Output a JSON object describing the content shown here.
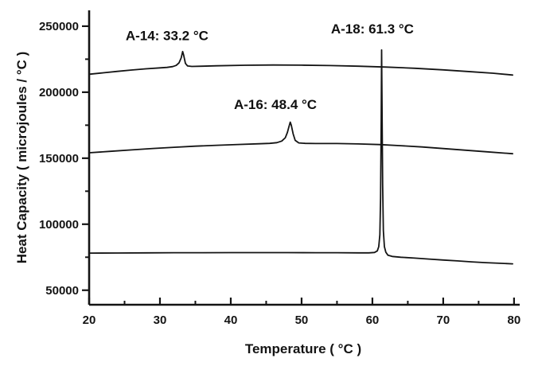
{
  "figure": {
    "background": "#ffffff",
    "ink_color": "#141414"
  },
  "chart_data": {
    "type": "line",
    "title": "",
    "xlabel": "Temperature ( °C )",
    "ylabel": "Heat Capacity ( microjoules / °C )",
    "xlim": [
      20,
      80.8
    ],
    "ylim": [
      39000,
      262000
    ],
    "grid": false,
    "legend": "none",
    "x_ticks": [
      {
        "value": 20,
        "label": "20"
      },
      {
        "value": 30,
        "label": "30"
      },
      {
        "value": 40,
        "label": "40"
      },
      {
        "value": 50,
        "label": "50"
      },
      {
        "value": 60,
        "label": "60"
      },
      {
        "value": 70,
        "label": "70"
      },
      {
        "value": 80,
        "label": "80"
      }
    ],
    "x_minor_ticks": [
      25,
      35,
      45,
      55,
      65,
      75
    ],
    "y_ticks": [
      {
        "value": 50000,
        "label": "50000"
      },
      {
        "value": 100000,
        "label": "100000"
      },
      {
        "value": 150000,
        "label": "150000"
      },
      {
        "value": 200000,
        "label": "200000"
      },
      {
        "value": 250000,
        "label": "250000"
      }
    ],
    "y_minor_ticks": [
      75000,
      125000,
      175000,
      225000
    ],
    "annotations": [
      {
        "text": "A-14: 33.2 °C",
        "x": 31.0,
        "y": 243000
      },
      {
        "text": "A-16: 48.4 °C",
        "x": 46.3,
        "y": 191000
      },
      {
        "text": "A-18: 61.3 °C",
        "x": 60.0,
        "y": 248000
      }
    ],
    "series": [
      {
        "name": "A-14",
        "peak_temp_c": 33.2,
        "peak_heat_capacity": 230800,
        "points": [
          [
            20,
            213600
          ],
          [
            22,
            214700
          ],
          [
            24,
            215800
          ],
          [
            26,
            216800
          ],
          [
            28,
            217700
          ],
          [
            30,
            218400
          ],
          [
            31,
            218800
          ],
          [
            31.8,
            219400
          ],
          [
            32.3,
            220300
          ],
          [
            32.7,
            222300
          ],
          [
            33.0,
            226000
          ],
          [
            33.2,
            230800
          ],
          [
            33.35,
            228000
          ],
          [
            33.6,
            221800
          ],
          [
            33.9,
            219900
          ],
          [
            34.5,
            219500
          ],
          [
            36,
            219700
          ],
          [
            38,
            220000
          ],
          [
            42,
            220400
          ],
          [
            46,
            220600
          ],
          [
            50,
            220500
          ],
          [
            54,
            220200
          ],
          [
            58,
            219700
          ],
          [
            62,
            219000
          ],
          [
            66,
            218100
          ],
          [
            70,
            216900
          ],
          [
            74,
            215500
          ],
          [
            77,
            214400
          ],
          [
            79.8,
            213000
          ]
        ]
      },
      {
        "name": "A-16",
        "peak_temp_c": 48.4,
        "peak_heat_capacity": 177300,
        "points": [
          [
            20,
            154100
          ],
          [
            23,
            155200
          ],
          [
            26,
            156300
          ],
          [
            29,
            157400
          ],
          [
            32,
            158300
          ],
          [
            35,
            159100
          ],
          [
            38,
            159800
          ],
          [
            41,
            160400
          ],
          [
            44,
            160900
          ],
          [
            45.5,
            161200
          ],
          [
            46.5,
            161800
          ],
          [
            47.2,
            163000
          ],
          [
            47.7,
            165500
          ],
          [
            48.0,
            169500
          ],
          [
            48.2,
            173500
          ],
          [
            48.4,
            177300
          ],
          [
            48.55,
            175000
          ],
          [
            48.8,
            168500
          ],
          [
            49.1,
            163500
          ],
          [
            49.6,
            161600
          ],
          [
            50.5,
            161200
          ],
          [
            52,
            161100
          ],
          [
            55,
            161100
          ],
          [
            58,
            160800
          ],
          [
            61,
            160300
          ],
          [
            64,
            159500
          ],
          [
            67,
            158500
          ],
          [
            70,
            157300
          ],
          [
            73,
            156100
          ],
          [
            76,
            154900
          ],
          [
            79.8,
            153400
          ]
        ]
      },
      {
        "name": "A-18",
        "peak_temp_c": 61.3,
        "peak_heat_capacity": 232000,
        "points": [
          [
            20,
            78100
          ],
          [
            24,
            78200
          ],
          [
            28,
            78300
          ],
          [
            32,
            78400
          ],
          [
            36,
            78400
          ],
          [
            40,
            78500
          ],
          [
            44,
            78500
          ],
          [
            48,
            78500
          ],
          [
            52,
            78400
          ],
          [
            55,
            78400
          ],
          [
            58,
            78300
          ],
          [
            59.5,
            78300
          ],
          [
            60.3,
            78600
          ],
          [
            60.7,
            79800
          ],
          [
            60.9,
            83000
          ],
          [
            61.05,
            92000
          ],
          [
            61.15,
            120000
          ],
          [
            61.25,
            180000
          ],
          [
            61.3,
            232000
          ],
          [
            61.35,
            200000
          ],
          [
            61.45,
            130000
          ],
          [
            61.55,
            95000
          ],
          [
            61.7,
            83000
          ],
          [
            61.9,
            78800
          ],
          [
            62.2,
            76500
          ],
          [
            62.8,
            75600
          ],
          [
            64,
            75000
          ],
          [
            66,
            74300
          ],
          [
            68,
            73600
          ],
          [
            70,
            72900
          ],
          [
            72,
            72200
          ],
          [
            74,
            71500
          ],
          [
            76,
            70900
          ],
          [
            78,
            70400
          ],
          [
            79.8,
            70000
          ]
        ]
      }
    ]
  }
}
